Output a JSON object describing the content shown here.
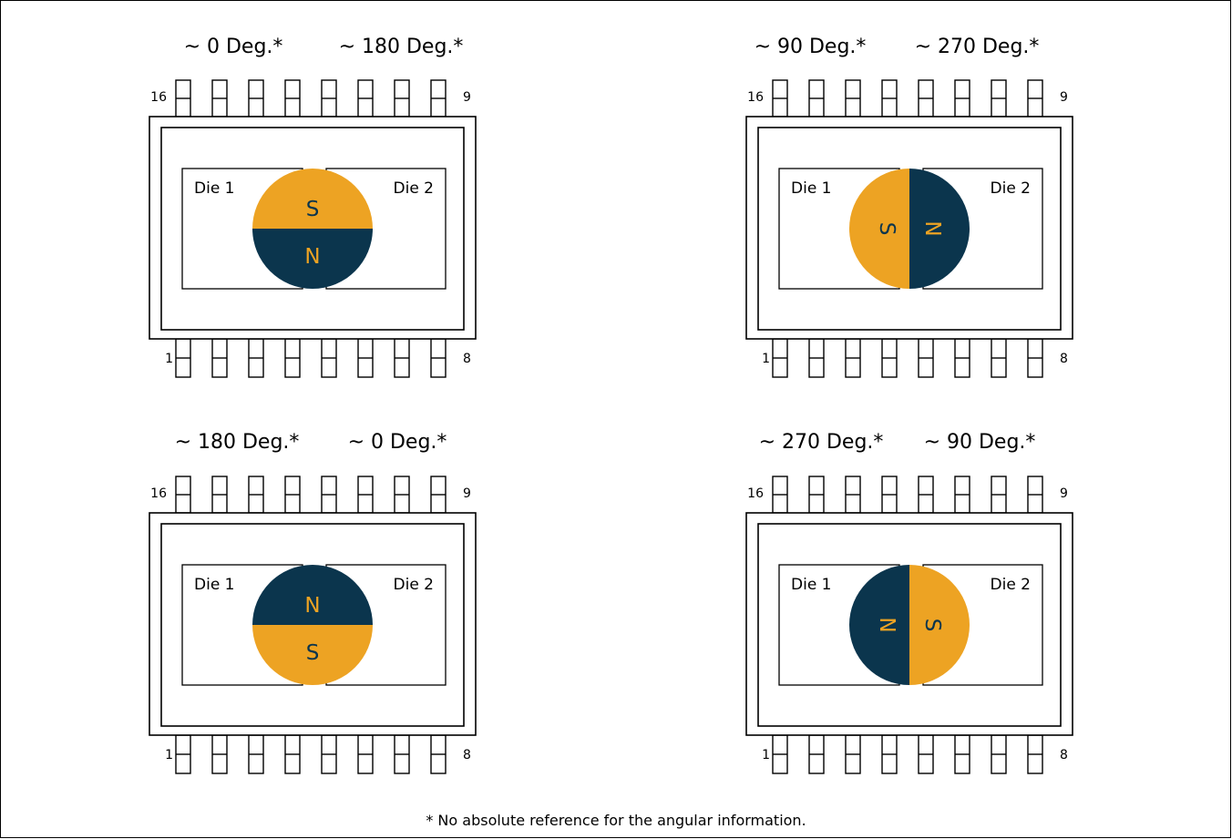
{
  "colors": {
    "south": "#EDA323",
    "north": "#0B354D"
  },
  "pin_labels": {
    "top_left": "16",
    "top_right": "9",
    "bottom_left": "1",
    "bottom_right": "8"
  },
  "die_labels": {
    "left": "Die 1",
    "right": "Die 2"
  },
  "pole_letters": {
    "south": "S",
    "north": "N"
  },
  "packages": [
    {
      "id": "top-left",
      "angle_left": "~ 0 Deg.*",
      "angle_right": "~ 180 Deg.*",
      "magnet": "horizontal-S-top"
    },
    {
      "id": "top-right",
      "angle_left": "~ 90 Deg.*",
      "angle_right": "~ 270 Deg.*",
      "magnet": "vertical-S-left"
    },
    {
      "id": "bottom-left",
      "angle_left": "~ 180 Deg.*",
      "angle_right": "~ 0 Deg.*",
      "magnet": "horizontal-N-top"
    },
    {
      "id": "bottom-right",
      "angle_left": "~ 270 Deg.*",
      "angle_right": "~ 90 Deg.*",
      "magnet": "vertical-N-left"
    }
  ],
  "footnote": "* No absolute reference for the angular information."
}
